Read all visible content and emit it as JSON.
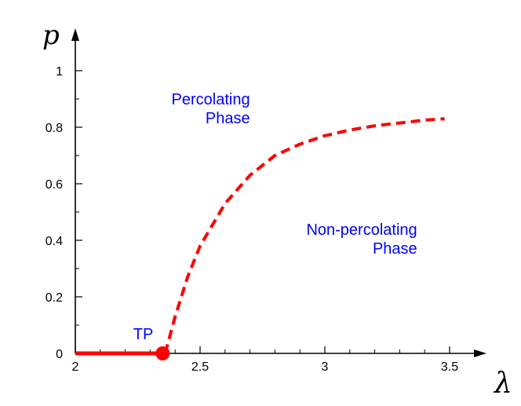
{
  "chart_data": {
    "type": "line",
    "title": "",
    "xlabel": "λ",
    "ylabel": "p",
    "xlim": [
      2,
      3.6
    ],
    "ylim": [
      0,
      1.08
    ],
    "x_ticks": [
      {
        "value": 2,
        "label": "2"
      },
      {
        "value": 2.5,
        "label": "2.5"
      },
      {
        "value": 3,
        "label": "3"
      },
      {
        "value": 3.5,
        "label": "3.5"
      }
    ],
    "y_ticks": [
      {
        "value": 0,
        "label": "0"
      },
      {
        "value": 0.2,
        "label": "0.2"
      },
      {
        "value": 0.4,
        "label": "0.4"
      },
      {
        "value": 0.6,
        "label": "0.6"
      },
      {
        "value": 0.8,
        "label": "0.8"
      },
      {
        "value": 1,
        "label": "1"
      }
    ],
    "grid": false,
    "series": [
      {
        "style": "solid",
        "color": "#ff0000",
        "x": [
          2.0,
          2.35
        ],
        "y": [
          0.0,
          0.0
        ]
      },
      {
        "style": "dashed",
        "color": "#ff0000",
        "x": [
          2.36,
          2.4,
          2.45,
          2.5,
          2.6,
          2.7,
          2.8,
          2.9,
          3.0,
          3.1,
          3.2,
          3.3,
          3.4,
          3.48
        ],
        "y": [
          0.0,
          0.13,
          0.27,
          0.38,
          0.53,
          0.63,
          0.7,
          0.74,
          0.77,
          0.79,
          0.805,
          0.815,
          0.825,
          0.83
        ]
      }
    ],
    "points": [
      {
        "x": 2.35,
        "y": 0.0,
        "label": "TP",
        "color": "#ff0000"
      }
    ],
    "annotations": [
      {
        "lines": [
          "Percolating",
          "Phase"
        ],
        "x": 2.7,
        "y": 0.88,
        "align": "end",
        "color": "#0000ff"
      },
      {
        "lines": [
          "Non-percolating",
          "Phase"
        ],
        "x": 3.37,
        "y": 0.42,
        "align": "end",
        "color": "#0000ff"
      }
    ]
  }
}
